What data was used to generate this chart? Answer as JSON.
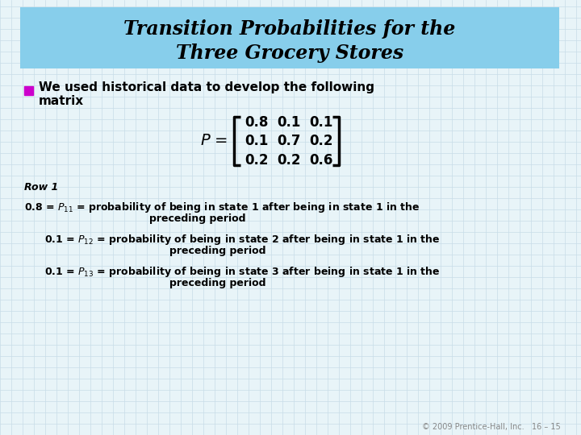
{
  "title_line1": "Transition Probabilities for the",
  "title_line2": "Three Grocery Stores",
  "title_bg_color": "#87CEEB",
  "title_font_size": 17,
  "bg_color": "#E8F4F8",
  "grid_color": "#C8DCE8",
  "bullet_color": "#CC00CC",
  "matrix": [
    [
      0.8,
      0.1,
      0.1
    ],
    [
      0.1,
      0.7,
      0.2
    ],
    [
      0.2,
      0.2,
      0.6
    ]
  ],
  "footer": "© 2009 Prentice-Hall, Inc.   16 – 15",
  "footer_color": "#888888",
  "footer_fontsize": 7
}
